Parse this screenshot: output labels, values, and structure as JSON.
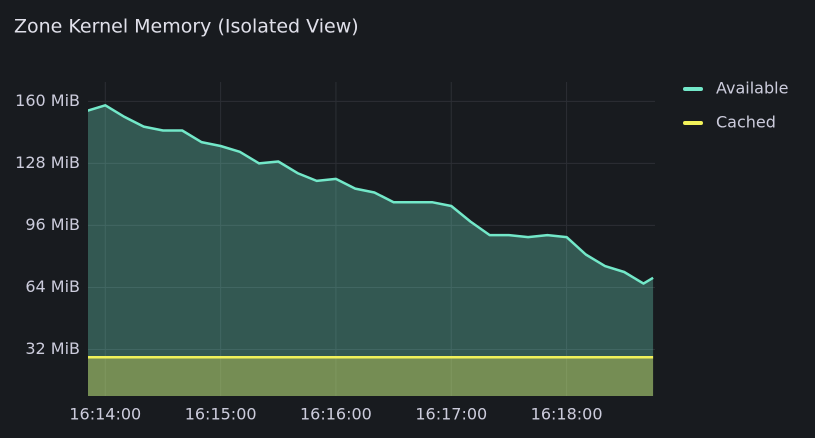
{
  "chart_data": {
    "type": "area",
    "title": "Zone Kernel Memory (Isolated View)",
    "x": [
      "16:13:50",
      "16:14:00",
      "16:14:10",
      "16:14:20",
      "16:14:30",
      "16:14:40",
      "16:14:50",
      "16:15:00",
      "16:15:10",
      "16:15:20",
      "16:15:30",
      "16:15:40",
      "16:15:50",
      "16:16:00",
      "16:16:10",
      "16:16:20",
      "16:16:30",
      "16:16:40",
      "16:16:50",
      "16:17:00",
      "16:17:10",
      "16:17:20",
      "16:17:30",
      "16:17:40",
      "16:17:50",
      "16:18:00",
      "16:18:10",
      "16:18:20",
      "16:18:30",
      "16:18:40",
      "16:18:45"
    ],
    "series": [
      {
        "name": "Available",
        "color": "#73e8c9",
        "values": [
          155,
          158,
          152,
          147,
          145,
          145,
          139,
          137,
          134,
          128,
          129,
          123,
          119,
          120,
          115,
          113,
          108,
          108,
          108,
          106,
          98,
          91,
          91,
          90,
          91,
          90,
          81,
          75,
          72,
          66,
          69
        ]
      },
      {
        "name": "Cached",
        "color": "#f2f25a",
        "values": [
          28,
          28,
          28,
          28,
          28,
          28,
          28,
          28,
          28,
          28,
          28,
          28,
          28,
          28,
          28,
          28,
          28,
          28,
          28,
          28,
          28,
          28,
          28,
          28,
          28,
          28,
          28,
          28,
          28,
          28,
          28
        ]
      }
    ],
    "xlim": [
      "16:13:51",
      "16:18:46"
    ],
    "xticks": [
      "16:14:00",
      "16:15:00",
      "16:16:00",
      "16:17:00",
      "16:18:00"
    ],
    "ylim": [
      8,
      170
    ],
    "yticks": [
      {
        "value": 32,
        "label": "32 MiB"
      },
      {
        "value": 64,
        "label": "64 MiB"
      },
      {
        "value": 96,
        "label": "96 MiB"
      },
      {
        "value": 128,
        "label": "128 MiB"
      },
      {
        "value": 160,
        "label": "160 MiB"
      }
    ],
    "grid": true,
    "legend": "right"
  }
}
